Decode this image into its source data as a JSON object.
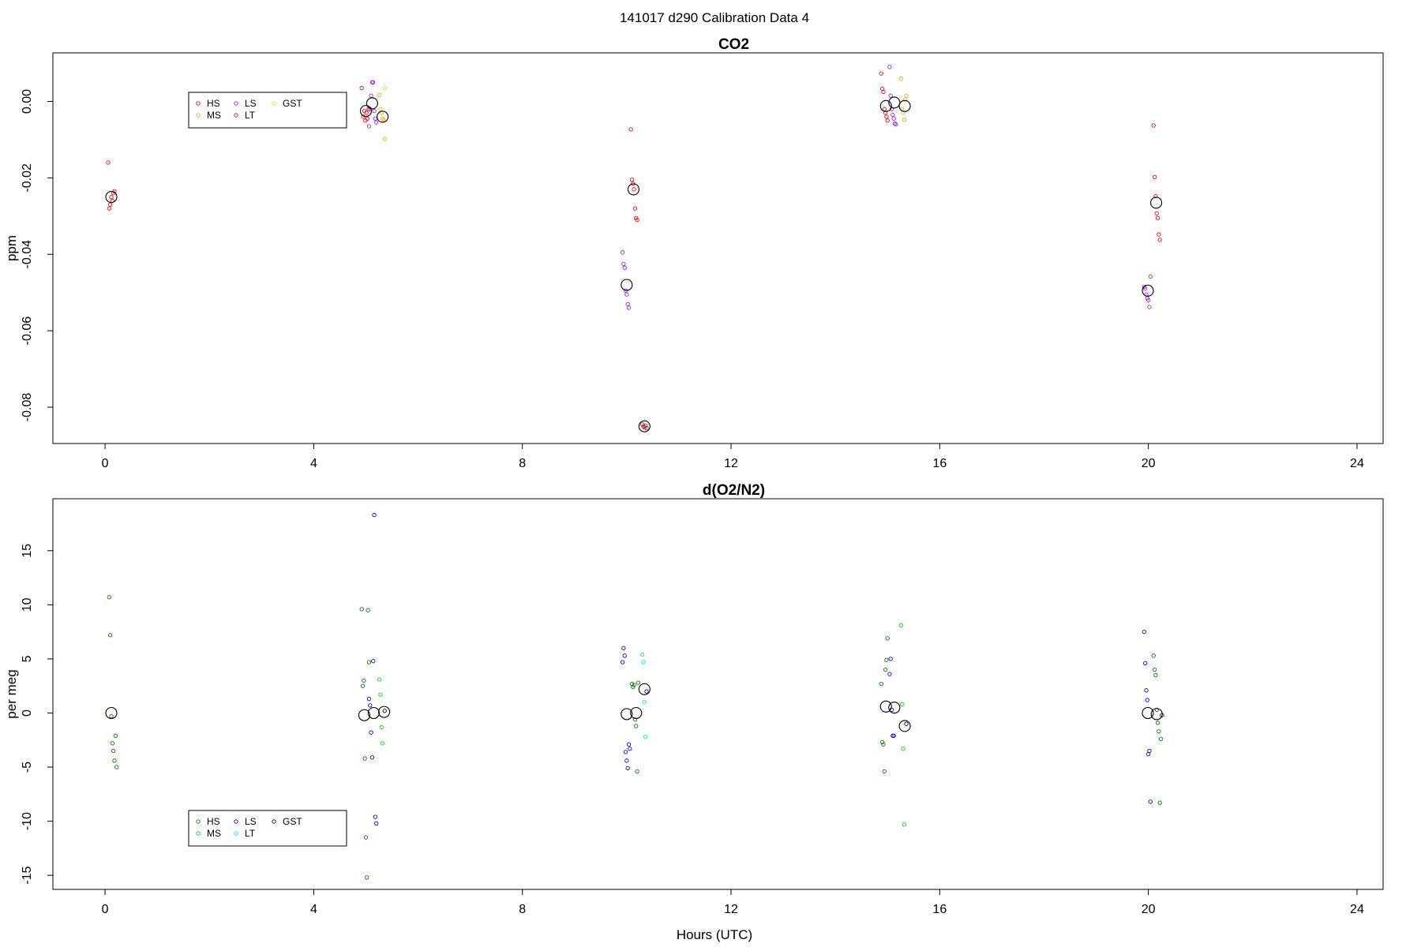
{
  "figure": {
    "title": "141017   d290   Calibration Data 4",
    "xlabel": "Hours (UTC)"
  },
  "chart_data": [
    {
      "type": "scatter",
      "title": "CO2",
      "ylabel": "ppm",
      "xlim": [
        -1.0,
        24.5
      ],
      "ylim": [
        -0.0895,
        0.0127
      ],
      "xticks": [
        "0",
        "4",
        "8",
        "12",
        "16",
        "20",
        "24"
      ],
      "xtick_values": [
        0,
        4,
        8,
        12,
        16,
        20,
        24
      ],
      "yticks": [
        "0.00",
        "-0.02",
        "-0.04",
        "-0.06",
        "-0.08"
      ],
      "ytick_values": [
        0.0,
        -0.02,
        -0.04,
        -0.06,
        -0.08
      ],
      "legend": {
        "position": "top-left",
        "entries": [
          {
            "name": "HS",
            "color": "#ff0000"
          },
          {
            "name": "MS",
            "color": "#ffa500"
          },
          {
            "name": "LS",
            "color": "#a020f0"
          },
          {
            "name": "LT",
            "color": "#b22222"
          },
          {
            "name": "GST",
            "color": "#ffd700"
          }
        ]
      },
      "series": [
        {
          "name": "HS",
          "color": "#ff0000",
          "points": [
            [
              0.06,
              -0.016
            ],
            [
              0.08,
              -0.028
            ],
            [
              0.1,
              -0.027
            ],
            [
              0.12,
              -0.025
            ],
            [
              0.14,
              -0.026
            ],
            [
              0.16,
              -0.024
            ],
            [
              0.18,
              -0.0235
            ],
            [
              4.92,
              0.0035
            ],
            [
              4.95,
              -0.004
            ],
            [
              4.97,
              -0.0025
            ],
            [
              4.99,
              -0.005
            ],
            [
              5.01,
              -0.003
            ],
            [
              5.03,
              -0.0045
            ],
            [
              5.05,
              -0.002
            ],
            [
              10.08,
              -0.0073
            ],
            [
              10.1,
              -0.0205
            ],
            [
              10.12,
              -0.0215
            ],
            [
              10.14,
              -0.023
            ],
            [
              10.16,
              -0.028
            ],
            [
              10.18,
              -0.0305
            ],
            [
              10.2,
              -0.031
            ],
            [
              14.88,
              0.0073
            ],
            [
              14.9,
              0.0033
            ],
            [
              14.92,
              0.0025
            ],
            [
              14.94,
              -0.002
            ],
            [
              14.96,
              -0.003
            ],
            [
              14.98,
              -0.004
            ],
            [
              15.0,
              -0.005
            ],
            [
              20.1,
              -0.0063
            ],
            [
              20.12,
              -0.0198
            ],
            [
              20.14,
              -0.0248
            ],
            [
              20.16,
              -0.0293
            ],
            [
              20.18,
              -0.0305
            ],
            [
              20.2,
              -0.0348
            ],
            [
              20.22,
              -0.0362
            ]
          ]
        },
        {
          "name": "MS",
          "color": "#ffa500",
          "points": [
            [
              5.26,
              0.0017
            ],
            [
              5.28,
              -0.002
            ],
            [
              5.3,
              -0.003
            ],
            [
              5.32,
              -0.0045
            ],
            [
              5.34,
              -0.0048
            ],
            [
              5.36,
              -0.0098
            ],
            [
              15.26,
              0.006
            ],
            [
              15.28,
              -0.002
            ],
            [
              15.3,
              -0.003
            ],
            [
              15.32,
              -0.0048
            ],
            [
              15.34,
              0.0005
            ],
            [
              15.36,
              0.0015
            ]
          ]
        },
        {
          "name": "LS",
          "color": "#a020f0",
          "points": [
            [
              5.06,
              -0.0065
            ],
            [
              5.08,
              -0.002
            ],
            [
              5.1,
              0.0015
            ],
            [
              5.12,
              0.005
            ],
            [
              5.14,
              0.005
            ],
            [
              5.16,
              -0.0025
            ],
            [
              5.18,
              -0.0045
            ],
            [
              5.2,
              -0.0055
            ],
            [
              9.92,
              -0.0395
            ],
            [
              9.94,
              -0.0425
            ],
            [
              9.96,
              -0.0435
            ],
            [
              9.98,
              -0.0495
            ],
            [
              10.0,
              -0.0505
            ],
            [
              10.02,
              -0.053
            ],
            [
              10.04,
              -0.054
            ],
            [
              15.04,
              0.009
            ],
            [
              15.06,
              0.0015
            ],
            [
              15.08,
              -0.002
            ],
            [
              15.1,
              -0.0035
            ],
            [
              15.12,
              -0.0045
            ],
            [
              15.14,
              -0.0058
            ],
            [
              15.16,
              -0.006
            ],
            [
              19.92,
              -0.0485
            ],
            [
              19.94,
              -0.049
            ],
            [
              19.96,
              -0.0505
            ],
            [
              19.98,
              -0.0515
            ],
            [
              20.0,
              -0.052
            ],
            [
              20.02,
              -0.0538
            ],
            [
              20.04,
              -0.0458
            ]
          ]
        },
        {
          "name": "LT",
          "color": "#b22222",
          "points": [
            [
              10.3,
              -0.0845
            ],
            [
              10.32,
              -0.085
            ],
            [
              10.34,
              -0.0853
            ],
            [
              10.36,
              -0.0848
            ],
            [
              10.38,
              -0.0855
            ]
          ]
        },
        {
          "name": "GST",
          "color": "#ffd700",
          "points": [
            [
              5.36,
              0.0035
            ]
          ]
        },
        {
          "name": "mean",
          "color": "#000000",
          "points": [
            [
              0.12,
              -0.025
            ],
            [
              5.0,
              -0.0025
            ],
            [
              5.12,
              -0.0005
            ],
            [
              5.32,
              -0.004
            ],
            [
              10.13,
              -0.023
            ],
            [
              10.0,
              -0.048
            ],
            [
              10.34,
              -0.085
            ],
            [
              14.97,
              -0.0012
            ],
            [
              15.13,
              -0.0003
            ],
            [
              15.33,
              -0.0012
            ],
            [
              20.15,
              -0.0265
            ],
            [
              19.99,
              -0.0495
            ]
          ]
        }
      ]
    },
    {
      "type": "scatter",
      "title": "d(O2/N2)",
      "ylabel": "per meg",
      "xlim": [
        -1.0,
        24.5
      ],
      "ylim": [
        -16.3,
        19.8
      ],
      "xticks": [
        "0",
        "4",
        "8",
        "12",
        "16",
        "20",
        "24"
      ],
      "xtick_values": [
        0,
        4,
        8,
        12,
        16,
        20,
        24
      ],
      "yticks": [
        "15",
        "10",
        "5",
        "0",
        "-5",
        "-10",
        "-15"
      ],
      "ytick_values": [
        15,
        10,
        5,
        0,
        -5,
        -10,
        -15
      ],
      "legend": {
        "position": "bottom-left",
        "entries": [
          {
            "name": "HS",
            "color": "#008000"
          },
          {
            "name": "MS",
            "color": "#00e000"
          },
          {
            "name": "LS",
            "color": "#0000ff"
          },
          {
            "name": "LT",
            "color": "#00e5ee"
          },
          {
            "name": "GST",
            "color": "#000080"
          }
        ]
      },
      "series": [
        {
          "name": "HS",
          "color": "#008000",
          "points": [
            [
              0.08,
              10.7
            ],
            [
              0.1,
              7.2
            ],
            [
              0.12,
              -0.3
            ],
            [
              0.14,
              -2.8
            ],
            [
              0.16,
              -3.5
            ],
            [
              0.18,
              -4.4
            ],
            [
              0.2,
              -2.1
            ],
            [
              0.22,
              -5.0
            ],
            [
              4.92,
              9.6
            ],
            [
              4.94,
              2.5
            ],
            [
              4.96,
              3.0
            ],
            [
              4.98,
              -4.2
            ],
            [
              5.0,
              -11.5
            ],
            [
              5.02,
              -15.2
            ],
            [
              5.04,
              9.5
            ],
            [
              5.06,
              4.7
            ],
            [
              10.1,
              2.7
            ],
            [
              10.12,
              2.4
            ],
            [
              10.14,
              2.6
            ],
            [
              10.16,
              -0.6
            ],
            [
              10.18,
              -1.2
            ],
            [
              10.2,
              -5.4
            ],
            [
              10.22,
              2.8
            ],
            [
              14.88,
              2.7
            ],
            [
              14.9,
              -2.7
            ],
            [
              14.92,
              -2.9
            ],
            [
              14.94,
              -5.4
            ],
            [
              14.96,
              4.0
            ],
            [
              14.98,
              4.9
            ],
            [
              15.0,
              6.9
            ],
            [
              20.1,
              5.3
            ],
            [
              20.12,
              4.0
            ],
            [
              20.14,
              3.5
            ],
            [
              20.16,
              0.3
            ],
            [
              20.18,
              -0.9
            ],
            [
              20.2,
              -1.7
            ],
            [
              20.22,
              -8.3
            ],
            [
              20.24,
              -2.4
            ]
          ]
        },
        {
          "name": "MS",
          "color": "#00e000",
          "points": [
            [
              5.26,
              3.1
            ],
            [
              5.28,
              1.7
            ],
            [
              5.3,
              -1.3
            ],
            [
              5.32,
              -2.8
            ],
            [
              15.26,
              8.1
            ],
            [
              15.28,
              0.8
            ],
            [
              15.3,
              -3.3
            ],
            [
              15.32,
              -10.3
            ]
          ]
        },
        {
          "name": "LS",
          "color": "#0000ff",
          "points": [
            [
              5.06,
              1.3
            ],
            [
              5.08,
              0.7
            ],
            [
              5.1,
              -1.8
            ],
            [
              5.12,
              -4.1
            ],
            [
              5.14,
              4.8
            ],
            [
              5.16,
              18.3
            ],
            [
              5.18,
              -9.6
            ],
            [
              5.2,
              -10.2
            ],
            [
              9.92,
              4.7
            ],
            [
              9.94,
              6.0
            ],
            [
              9.96,
              5.3
            ],
            [
              9.98,
              -3.6
            ],
            [
              10.0,
              -4.4
            ],
            [
              10.02,
              -5.1
            ],
            [
              10.04,
              -2.9
            ],
            [
              10.06,
              -3.3
            ],
            [
              15.04,
              3.6
            ],
            [
              15.06,
              5.0
            ],
            [
              15.08,
              0.3
            ],
            [
              15.1,
              -2.1
            ],
            [
              15.12,
              -2.1
            ],
            [
              19.92,
              7.5
            ],
            [
              19.94,
              4.6
            ],
            [
              19.96,
              2.1
            ],
            [
              19.98,
              1.2
            ],
            [
              20.0,
              -3.8
            ],
            [
              20.02,
              -3.5
            ],
            [
              20.04,
              -8.2
            ]
          ]
        },
        {
          "name": "LT",
          "color": "#00e5ee",
          "points": [
            [
              10.3,
              5.4
            ],
            [
              10.32,
              4.7
            ],
            [
              10.34,
              1.0
            ],
            [
              10.36,
              -2.2
            ]
          ]
        },
        {
          "name": "GST",
          "color": "#000080",
          "points": [
            [
              5.36,
              0.2
            ],
            [
              10.38,
              2.0
            ],
            [
              15.36,
              -1.0
            ],
            [
              20.26,
              -0.2
            ]
          ]
        },
        {
          "name": "mean",
          "color": "#000000",
          "points": [
            [
              0.12,
              0.0
            ],
            [
              4.97,
              -0.2
            ],
            [
              5.15,
              0.0
            ],
            [
              5.35,
              0.1
            ],
            [
              10.0,
              -0.1
            ],
            [
              10.18,
              0.0
            ],
            [
              10.34,
              2.2
            ],
            [
              14.97,
              0.6
            ],
            [
              15.13,
              0.5
            ],
            [
              15.33,
              -1.2
            ],
            [
              19.99,
              0.0
            ],
            [
              20.16,
              -0.1
            ]
          ]
        }
      ]
    }
  ]
}
